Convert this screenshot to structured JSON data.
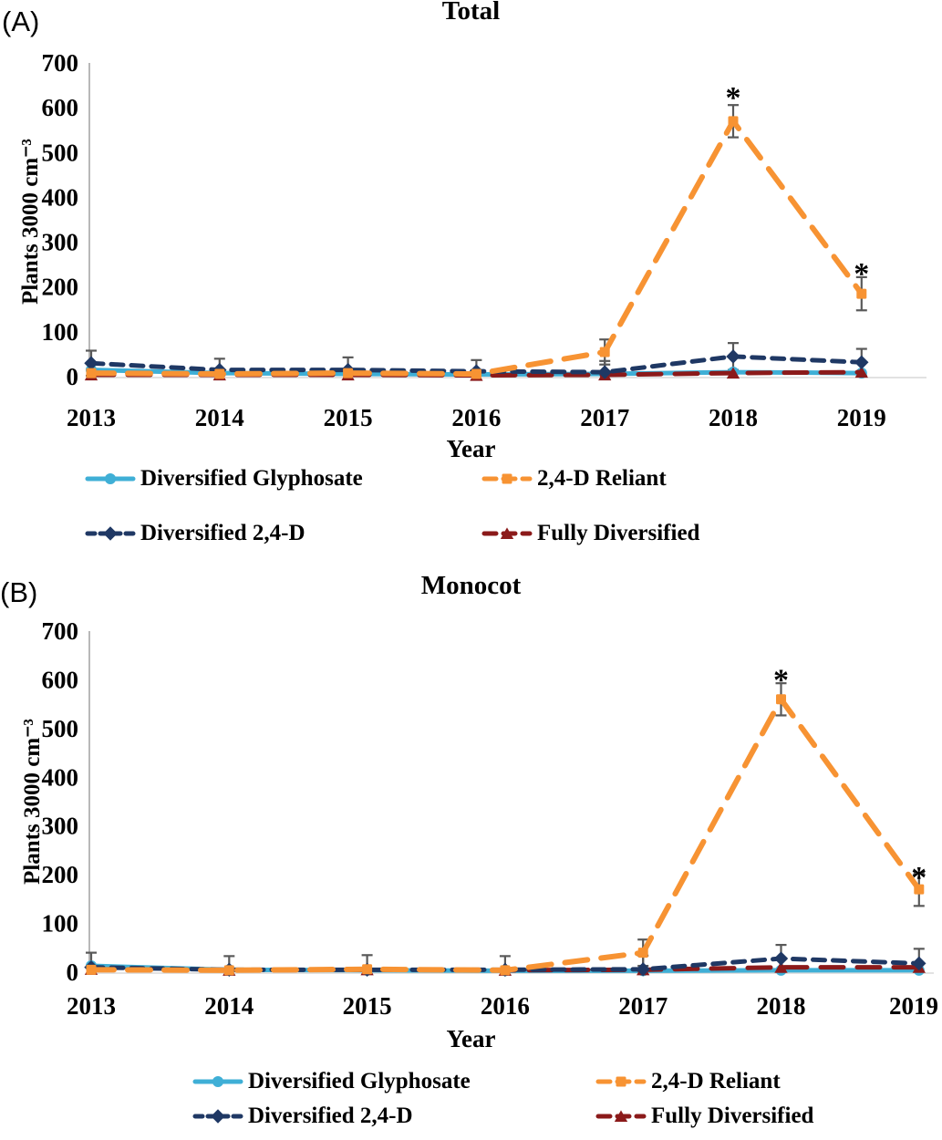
{
  "panels": [
    {
      "panel_label": "(A)",
      "title": "Total",
      "xlabel": "Year",
      "ylabel": "Plants 3000 cm⁻³"
    },
    {
      "panel_label": "(B)",
      "title": "Monocot",
      "xlabel": "Year",
      "ylabel": "Plants 3000 cm⁻³"
    }
  ],
  "colors": {
    "diversified_glyphosate": "#3FAFD6",
    "reliant_24d": "#F79333",
    "diversified_24d": "#1F3864",
    "fully_diversified": "#8B1A1A",
    "error_bar": "#595959",
    "axis_line": "#A6A6A6",
    "baseline": "#D9D9D9"
  },
  "chart_data": [
    {
      "type": "line",
      "title": "Total",
      "xlabel": "Year",
      "ylabel": "Plants 3000 cm-3",
      "categories": [
        "2013",
        "2014",
        "2015",
        "2016",
        "2017",
        "2018",
        "2019"
      ],
      "ylim": [
        0,
        700
      ],
      "yticks": [
        0,
        100,
        200,
        300,
        400,
        500,
        600,
        700
      ],
      "grid": false,
      "legend_position": "bottom",
      "series": [
        {
          "name": "Diversified Glyphosate",
          "color": "#3FAFD6",
          "style": "solid",
          "marker": "circle",
          "values": [
            15,
            8,
            6,
            5,
            6,
            10,
            8
          ],
          "errors": [
            0,
            0,
            0,
            0,
            0,
            0,
            0
          ]
        },
        {
          "name": "2,4-D Reliant",
          "color": "#F79333",
          "style": "long-dashed",
          "marker": "square",
          "values": [
            8,
            6,
            8,
            6,
            55,
            570,
            185
          ],
          "errors": [
            0,
            0,
            0,
            0,
            28,
            36,
            37
          ]
        },
        {
          "name": "Diversified 2,4-D",
          "color": "#1F3864",
          "style": "dashed",
          "marker": "diamond",
          "values": [
            30,
            15,
            15,
            12,
            10,
            45,
            32
          ],
          "errors": [
            28,
            25,
            28,
            25,
            25,
            30,
            30
          ]
        },
        {
          "name": "Fully Diversified",
          "color": "#8B1A1A",
          "style": "long-dashed",
          "marker": "triangle",
          "values": [
            4,
            4,
            4,
            3,
            4,
            8,
            10
          ],
          "errors": [
            0,
            0,
            0,
            0,
            0,
            0,
            0
          ]
        }
      ],
      "annotations": [
        {
          "category": "2018",
          "y": 645,
          "text": "*"
        },
        {
          "category": "2019",
          "y": 252,
          "text": "*"
        }
      ]
    },
    {
      "type": "line",
      "title": "Monocot",
      "xlabel": "Year",
      "ylabel": "Plants 3000 cm-3",
      "categories": [
        "2013",
        "2014",
        "2015",
        "2016",
        "2017",
        "2018",
        "2019"
      ],
      "ylim": [
        0,
        700
      ],
      "yticks": [
        0,
        100,
        200,
        300,
        400,
        500,
        600,
        700
      ],
      "grid": false,
      "legend_position": "bottom",
      "series": [
        {
          "name": "Diversified Glyphosate",
          "color": "#3FAFD6",
          "style": "solid",
          "marker": "circle",
          "values": [
            13,
            5,
            4,
            3,
            3,
            4,
            4
          ],
          "errors": [
            0,
            0,
            0,
            0,
            0,
            0,
            0
          ]
        },
        {
          "name": "2,4-D Reliant",
          "color": "#F79333",
          "style": "long-dashed",
          "marker": "square",
          "values": [
            5,
            4,
            6,
            4,
            40,
            560,
            170
          ],
          "errors": [
            0,
            0,
            0,
            0,
            27,
            33,
            34
          ]
        },
        {
          "name": "Diversified 2,4-D",
          "color": "#1F3864",
          "style": "dashed",
          "marker": "diamond",
          "values": [
            10,
            5,
            5,
            5,
            6,
            28,
            18
          ],
          "errors": [
            30,
            28,
            30,
            28,
            28,
            28,
            30
          ]
        },
        {
          "name": "Fully Diversified",
          "color": "#8B1A1A",
          "style": "long-dashed",
          "marker": "triangle",
          "values": [
            6,
            4,
            5,
            4,
            5,
            10,
            10
          ],
          "errors": [
            0,
            0,
            0,
            0,
            0,
            0,
            0
          ]
        }
      ],
      "annotations": [
        {
          "category": "2018",
          "y": 620,
          "text": "*"
        },
        {
          "category": "2019",
          "y": 215,
          "text": "*"
        }
      ]
    }
  ]
}
